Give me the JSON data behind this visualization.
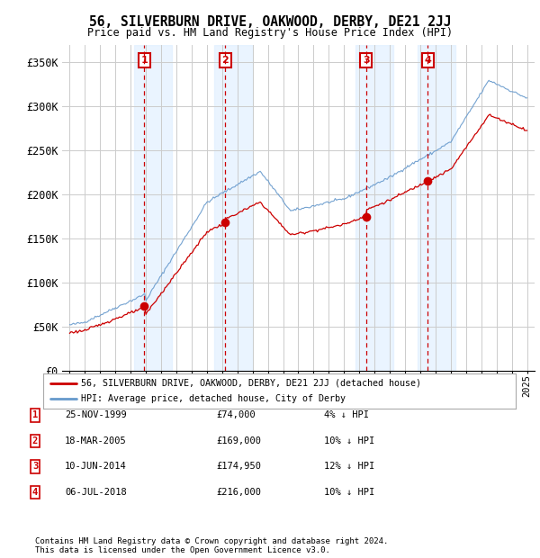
{
  "title": "56, SILVERBURN DRIVE, OAKWOOD, DERBY, DE21 2JJ",
  "subtitle": "Price paid vs. HM Land Registry's House Price Index (HPI)",
  "ylabel_ticks": [
    0,
    50000,
    100000,
    150000,
    200000,
    250000,
    300000,
    350000
  ],
  "ylabel_labels": [
    "£0",
    "£50K",
    "£100K",
    "£150K",
    "£200K",
    "£250K",
    "£300K",
    "£350K"
  ],
  "xlim": [
    1994.5,
    2025.5
  ],
  "ylim": [
    0,
    370000
  ],
  "sale_dates": [
    1999.9,
    2005.2,
    2014.45,
    2018.5
  ],
  "sale_prices": [
    74000,
    169000,
    174950,
    216000
  ],
  "sale_labels": [
    "1",
    "2",
    "3",
    "4"
  ],
  "legend_line1": "56, SILVERBURN DRIVE, OAKWOOD, DERBY, DE21 2JJ (detached house)",
  "legend_line2": "HPI: Average price, detached house, City of Derby",
  "table_rows": [
    [
      "1",
      "25-NOV-1999",
      "£74,000",
      "4% ↓ HPI"
    ],
    [
      "2",
      "18-MAR-2005",
      "£169,000",
      "10% ↓ HPI"
    ],
    [
      "3",
      "10-JUN-2014",
      "£174,950",
      "12% ↓ HPI"
    ],
    [
      "4",
      "06-JUL-2018",
      "£216,000",
      "10% ↓ HPI"
    ]
  ],
  "footnote1": "Contains HM Land Registry data © Crown copyright and database right 2024.",
  "footnote2": "This data is licensed under the Open Government Licence v3.0.",
  "red_color": "#cc0000",
  "blue_color": "#6699cc",
  "bg_color": "#ffffff",
  "grid_color": "#cccccc",
  "shade_color": "#ddeeff"
}
